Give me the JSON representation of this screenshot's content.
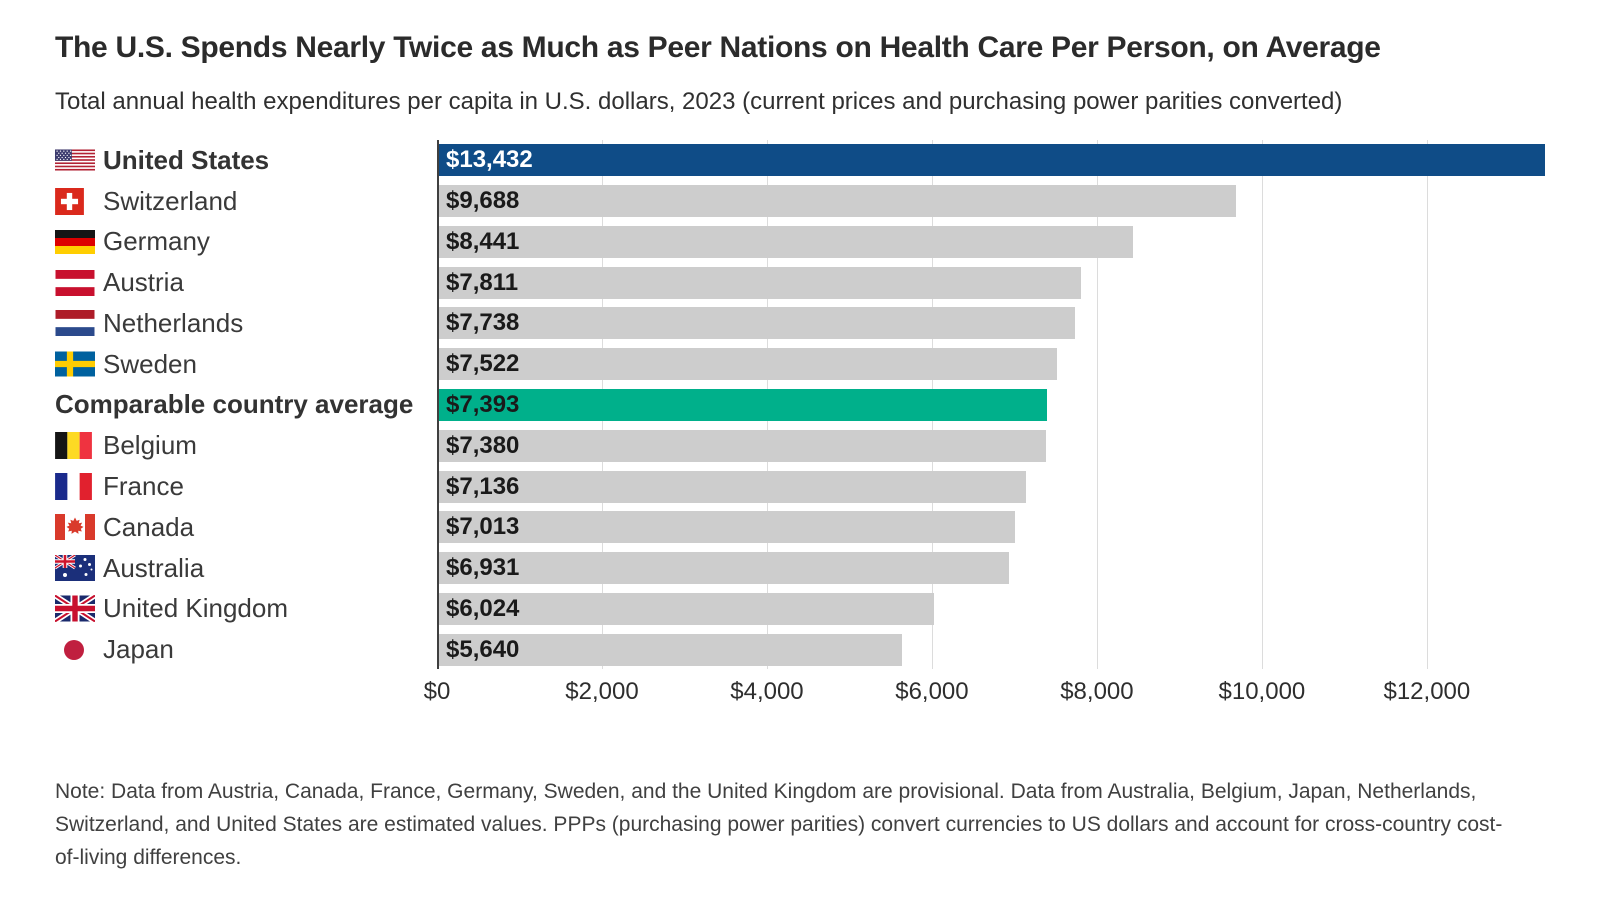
{
  "header": {
    "title": "The U.S. Spends Nearly Twice as Much as Peer Nations on Health Care Per Person, on Average",
    "subtitle": "Total annual health expenditures per capita in U.S. dollars, 2023 (current prices and purchasing power parities converted)"
  },
  "chart_data": {
    "type": "bar",
    "orientation": "horizontal",
    "title": "The U.S. Spends Nearly Twice as Much as Peer Nations on Health Care Per Person, on Average",
    "subtitle": "Total annual health expenditures per capita in U.S. dollars, 2023 (current prices and purchasing power parities converted)",
    "xlabel": "",
    "ylabel": "",
    "xlim": [
      0,
      13432
    ],
    "grid": "vertical",
    "grid_color": "#dcdcdc",
    "axis_line_color": "#3f3f3f",
    "x_tick_values": [
      0,
      2000,
      4000,
      6000,
      8000,
      10000,
      12000
    ],
    "x_tick_labels": [
      "$0",
      "$2,000",
      "$4,000",
      "$6,000",
      "$8,000",
      "$10,000",
      "$12,000"
    ],
    "colors": {
      "us_highlight": "#0F4C87",
      "average_highlight": "#00B08B",
      "default_bar": "#CDCDCD"
    },
    "rows": [
      {
        "label": "United States",
        "flag": "us",
        "value": 13432,
        "value_label": "$13,432",
        "color": "#0F4C87",
        "value_color": "#ffffff",
        "bold": true
      },
      {
        "label": "Switzerland",
        "flag": "ch",
        "value": 9688,
        "value_label": "$9,688",
        "color": "#CDCDCD",
        "value_color": "#1a1a1a",
        "bold": false
      },
      {
        "label": "Germany",
        "flag": "de",
        "value": 8441,
        "value_label": "$8,441",
        "color": "#CDCDCD",
        "value_color": "#1a1a1a",
        "bold": false
      },
      {
        "label": "Austria",
        "flag": "at",
        "value": 7811,
        "value_label": "$7,811",
        "color": "#CDCDCD",
        "value_color": "#1a1a1a",
        "bold": false
      },
      {
        "label": "Netherlands",
        "flag": "nl",
        "value": 7738,
        "value_label": "$7,738",
        "color": "#CDCDCD",
        "value_color": "#1a1a1a",
        "bold": false
      },
      {
        "label": "Sweden",
        "flag": "se",
        "value": 7522,
        "value_label": "$7,522",
        "color": "#CDCDCD",
        "value_color": "#1a1a1a",
        "bold": false
      },
      {
        "label": "Comparable country average",
        "flag": null,
        "value": 7393,
        "value_label": "$7,393",
        "color": "#00B08B",
        "value_color": "#1a1a1a",
        "bold": true
      },
      {
        "label": "Belgium",
        "flag": "be",
        "value": 7380,
        "value_label": "$7,380",
        "color": "#CDCDCD",
        "value_color": "#1a1a1a",
        "bold": false
      },
      {
        "label": "France",
        "flag": "fr",
        "value": 7136,
        "value_label": "$7,136",
        "color": "#CDCDCD",
        "value_color": "#1a1a1a",
        "bold": false
      },
      {
        "label": "Canada",
        "flag": "ca",
        "value": 7013,
        "value_label": "$7,013",
        "color": "#CDCDCD",
        "value_color": "#1a1a1a",
        "bold": false
      },
      {
        "label": "Australia",
        "flag": "au",
        "value": 6931,
        "value_label": "$6,931",
        "color": "#CDCDCD",
        "value_color": "#1a1a1a",
        "bold": false
      },
      {
        "label": "United Kingdom",
        "flag": "uk",
        "value": 6024,
        "value_label": "$6,024",
        "color": "#CDCDCD",
        "value_color": "#1a1a1a",
        "bold": false
      },
      {
        "label": "Japan",
        "flag": "jp",
        "value": 5640,
        "value_label": "$5,640",
        "color": "#CDCDCD",
        "value_color": "#1a1a1a",
        "bold": false
      }
    ]
  },
  "note": "Note: Data from Austria, Canada, France, Germany, Sweden, and the United Kingdom are provisional. Data from Australia, Belgium, Japan, Netherlands, Switzerland, and United States are estimated values. PPPs (purchasing power parities) convert currencies to US dollars and account for cross-country cost-of-living differences."
}
